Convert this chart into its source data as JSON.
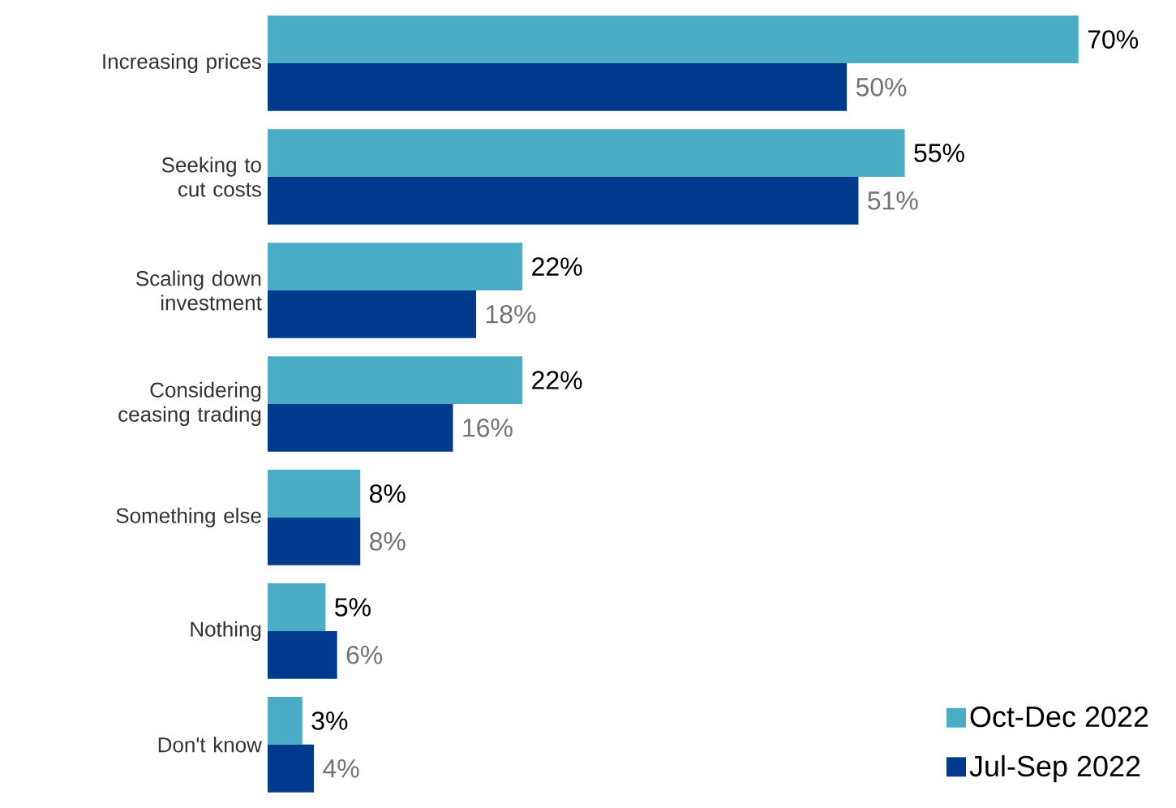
{
  "chart_data": {
    "type": "bar",
    "orientation": "horizontal",
    "legend": "bottom right",
    "categories": [
      "Increasing prices",
      "Seeking to cut costs",
      "Scaling down investment",
      "Considering ceasing trading",
      "Something else",
      "Nothing",
      "Don't know"
    ],
    "series": [
      {
        "name": "Oct-Dec 2022",
        "color": "#4bacc6",
        "values": [
          70,
          55,
          22,
          22,
          8,
          5,
          3
        ],
        "value_labels": [
          "70%",
          "55%",
          "22%",
          "22%",
          "8%",
          "5%",
          "3%"
        ]
      },
      {
        "name": "Jul-Sep 2022",
        "color": "#003a8c",
        "values": [
          50,
          51,
          18,
          16,
          8,
          6,
          4
        ],
        "value_labels": [
          "50%",
          "51%",
          "18%",
          "16%",
          "8%",
          "6%",
          "4%"
        ]
      }
    ]
  }
}
